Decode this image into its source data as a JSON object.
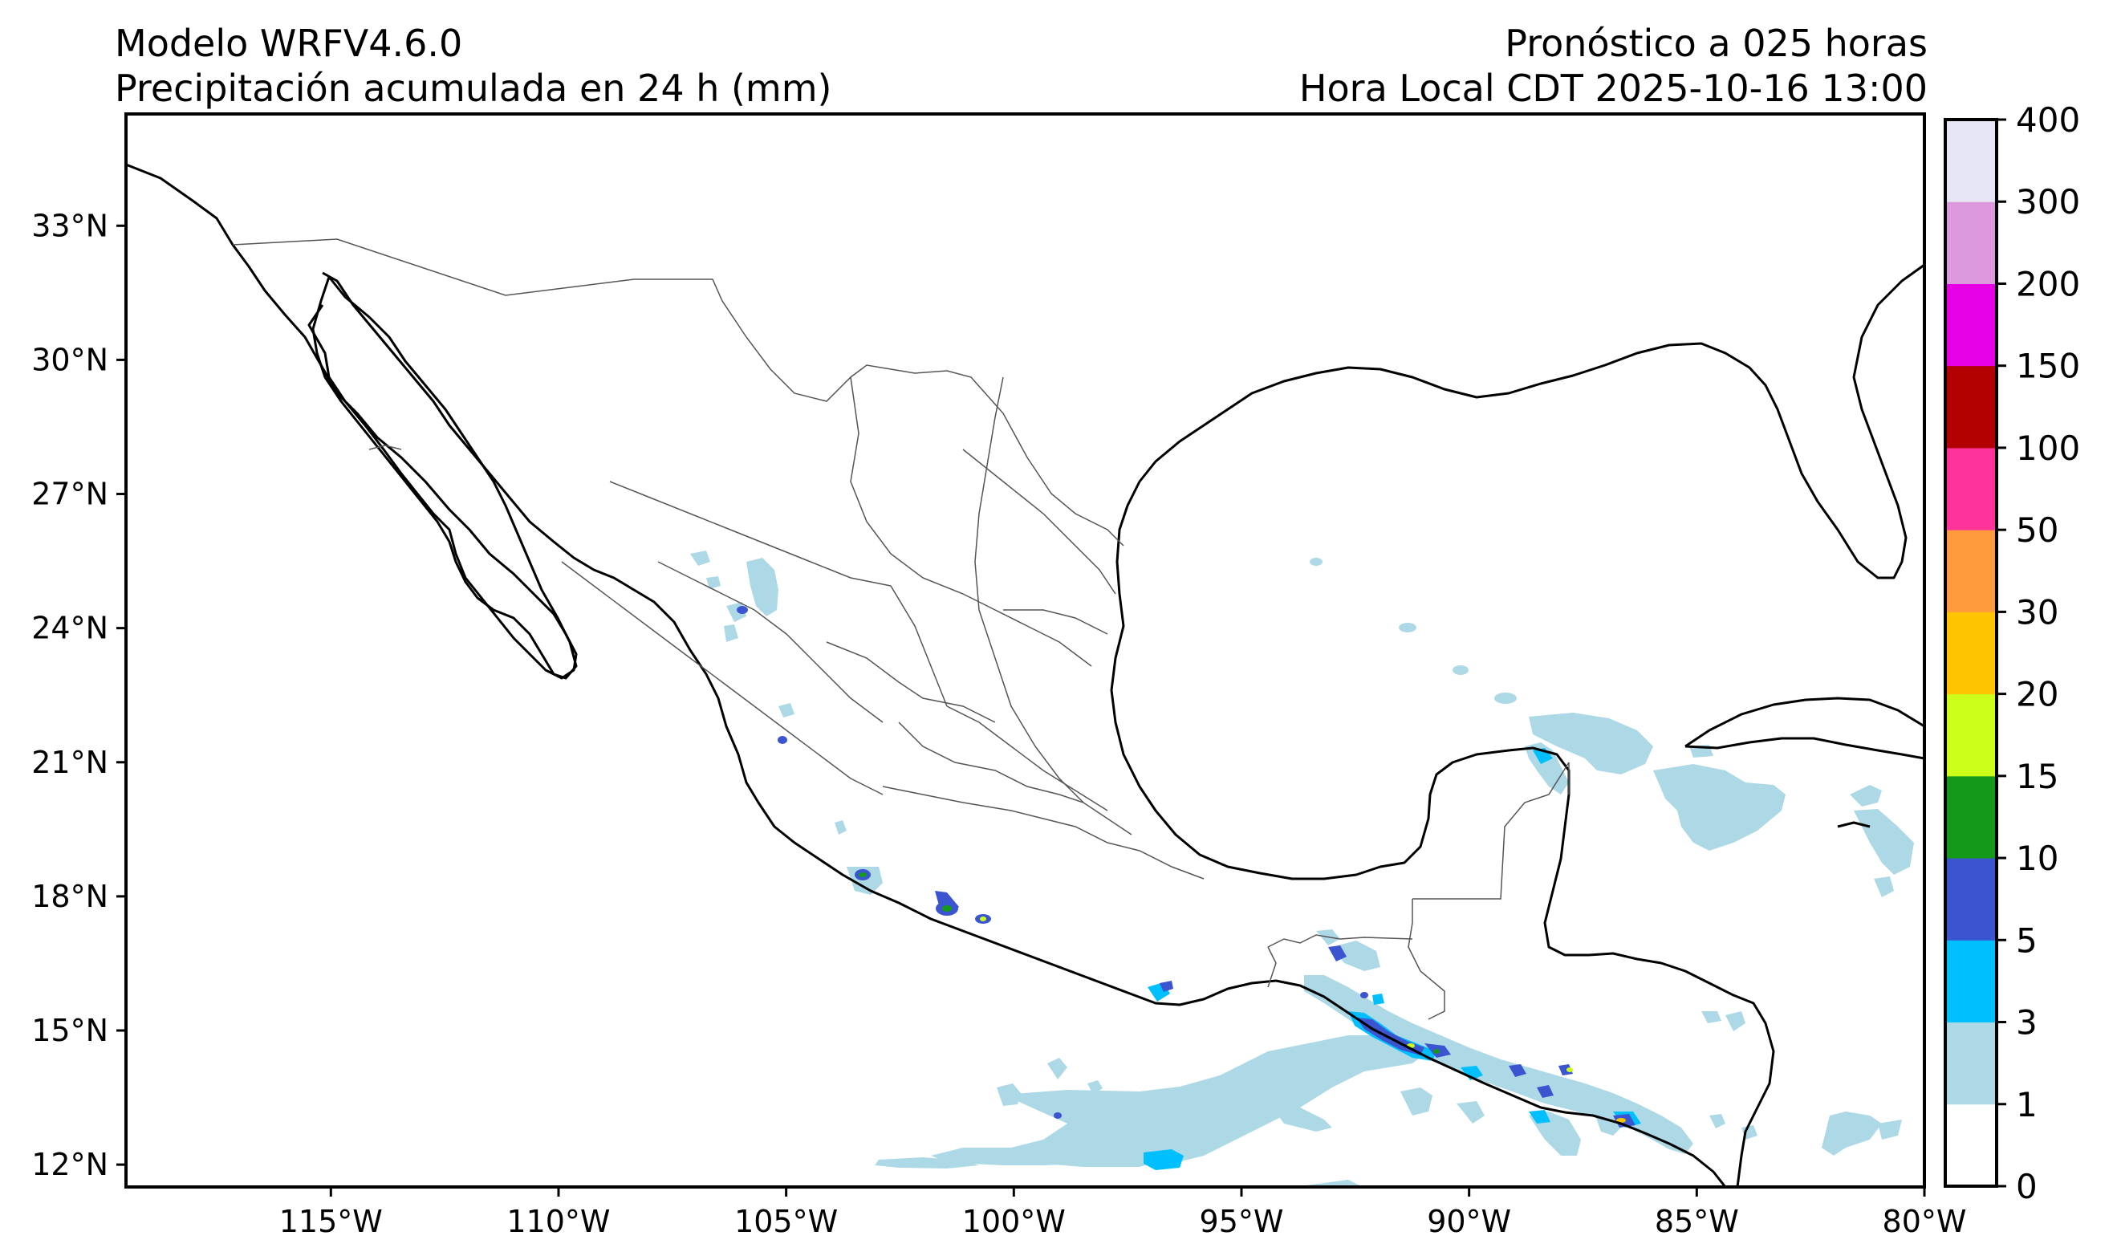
{
  "header": {
    "model": "Modelo WRFV4.6.0",
    "variable": "Precipitación acumulada en 24 h (mm)",
    "forecast": "Pronóstico a 025 horas",
    "valid_time": "Hora Local CDT 2025-10-16 13:00"
  },
  "map": {
    "lon_range": [
      -119.5,
      -80
    ],
    "lat_range": [
      11.5,
      35.5
    ],
    "lon_ticks": [
      {
        "value": -115,
        "label": "115°W"
      },
      {
        "value": -110,
        "label": "110°W"
      },
      {
        "value": -105,
        "label": "105°W"
      },
      {
        "value": -100,
        "label": "100°W"
      },
      {
        "value": -95,
        "label": "95°W"
      },
      {
        "value": -90,
        "label": "90°W"
      },
      {
        "value": -85,
        "label": "85°W"
      },
      {
        "value": -80,
        "label": "80°W"
      }
    ],
    "lat_ticks": [
      {
        "value": 33,
        "label": "33°N"
      },
      {
        "value": 30,
        "label": "30°N"
      },
      {
        "value": 27,
        "label": "27°N"
      },
      {
        "value": 24,
        "label": "24°N"
      },
      {
        "value": 21,
        "label": "21°N"
      },
      {
        "value": 18,
        "label": "18°N"
      },
      {
        "value": 15,
        "label": "15°N"
      },
      {
        "value": 12,
        "label": "12°N"
      }
    ]
  },
  "colorbar": {
    "levels": [
      "0",
      "1",
      "3",
      "5",
      "10",
      "15",
      "20",
      "30",
      "50",
      "100",
      "150",
      "200",
      "300",
      "400"
    ],
    "colors": [
      "#ffffff",
      "#add8e6",
      "#00bfff",
      "#3a55cf",
      "#14991a",
      "#ccff1a",
      "#ffc400",
      "#ff9b3d",
      "#ff3399",
      "#b30000",
      "#e600e6",
      "#dd99dd",
      "#e6e6f5"
    ]
  }
}
